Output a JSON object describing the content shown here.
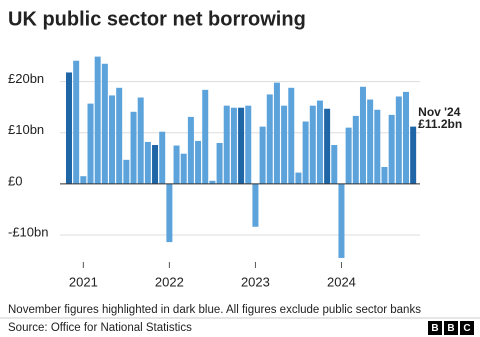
{
  "chart_data": {
    "type": "bar",
    "title": "UK public sector net borrowing",
    "categories": [
      null,
      null,
      "2021",
      null,
      null,
      null,
      null,
      null,
      null,
      null,
      null,
      null,
      null,
      null,
      "2022",
      null,
      null,
      null,
      null,
      null,
      null,
      null,
      null,
      null,
      null,
      null,
      "2023",
      null,
      null,
      null,
      null,
      null,
      null,
      null,
      null,
      null,
      null,
      null,
      "2024",
      null,
      null,
      null,
      null,
      null,
      null,
      null,
      null,
      null,
      null
    ],
    "values": [
      21.8,
      24.1,
      1.5,
      15.7,
      24.9,
      23.5,
      17.3,
      18.8,
      4.7,
      14.1,
      16.9,
      8.2,
      7.6,
      10.2,
      -11.4,
      7.5,
      5.9,
      13.1,
      8.4,
      18.4,
      0.6,
      8.0,
      15.3,
      14.9,
      14.9,
      15.3,
      -8.4,
      11.2,
      17.5,
      19.8,
      15.3,
      18.8,
      2.2,
      12.2,
      15.3,
      16.3,
      14.7,
      7.6,
      -14.5,
      11.0,
      13.3,
      19.0,
      16.5,
      14.5,
      3.3,
      13.5,
      17.1,
      18.0,
      11.2
    ],
    "value_labels": [
      null,
      null,
      null,
      null,
      null,
      null,
      null,
      null,
      null,
      null,
      null,
      null,
      null,
      null,
      null,
      null,
      null,
      null,
      null,
      null,
      null,
      null,
      null,
      null,
      null,
      null,
      null,
      null,
      null,
      null,
      null,
      null,
      null,
      null,
      null,
      null,
      null,
      null,
      null,
      null,
      null,
      null,
      null,
      null,
      null,
      null,
      null,
      null,
      "£11.2bn"
    ],
    "colors": [
      "#1f66a7",
      "#5ca3dc",
      "#5ca3dc",
      "#5ca3dc",
      "#5ca3dc",
      "#5ca3dc",
      "#5ca3dc",
      "#5ca3dc",
      "#5ca3dc",
      "#5ca3dc",
      "#5ca3dc",
      "#5ca3dc",
      "#1f66a7",
      "#5ca3dc",
      "#5ca3dc",
      "#5ca3dc",
      "#5ca3dc",
      "#5ca3dc",
      "#5ca3dc",
      "#5ca3dc",
      "#5ca3dc",
      "#5ca3dc",
      "#5ca3dc",
      "#5ca3dc",
      "#1f66a7",
      "#5ca3dc",
      "#5ca3dc",
      "#5ca3dc",
      "#5ca3dc",
      "#5ca3dc",
      "#5ca3dc",
      "#5ca3dc",
      "#5ca3dc",
      "#5ca3dc",
      "#5ca3dc",
      "#5ca3dc",
      "#1f66a7",
      "#5ca3dc",
      "#5ca3dc",
      "#5ca3dc",
      "#5ca3dc",
      "#5ca3dc",
      "#5ca3dc",
      "#5ca3dc",
      "#5ca3dc",
      "#5ca3dc",
      "#5ca3dc",
      "#5ca3dc",
      "#1f66a7"
    ],
    "annotation": "Nov '24",
    "ylim": [
      -16,
      26
    ],
    "yticks": [
      {
        "value": -10,
        "label": "-£10bn"
      },
      {
        "value": 0,
        "label": "£0"
      },
      {
        "value": 10,
        "label": "£10bn"
      },
      {
        "value": 20,
        "label": "£20bn"
      }
    ],
    "grid": true,
    "note": "November figures highlighted in dark blue. All figures exclude public sector banks",
    "source": "Source: Office for National Statistics",
    "logo": [
      "B",
      "B",
      "C"
    ]
  }
}
